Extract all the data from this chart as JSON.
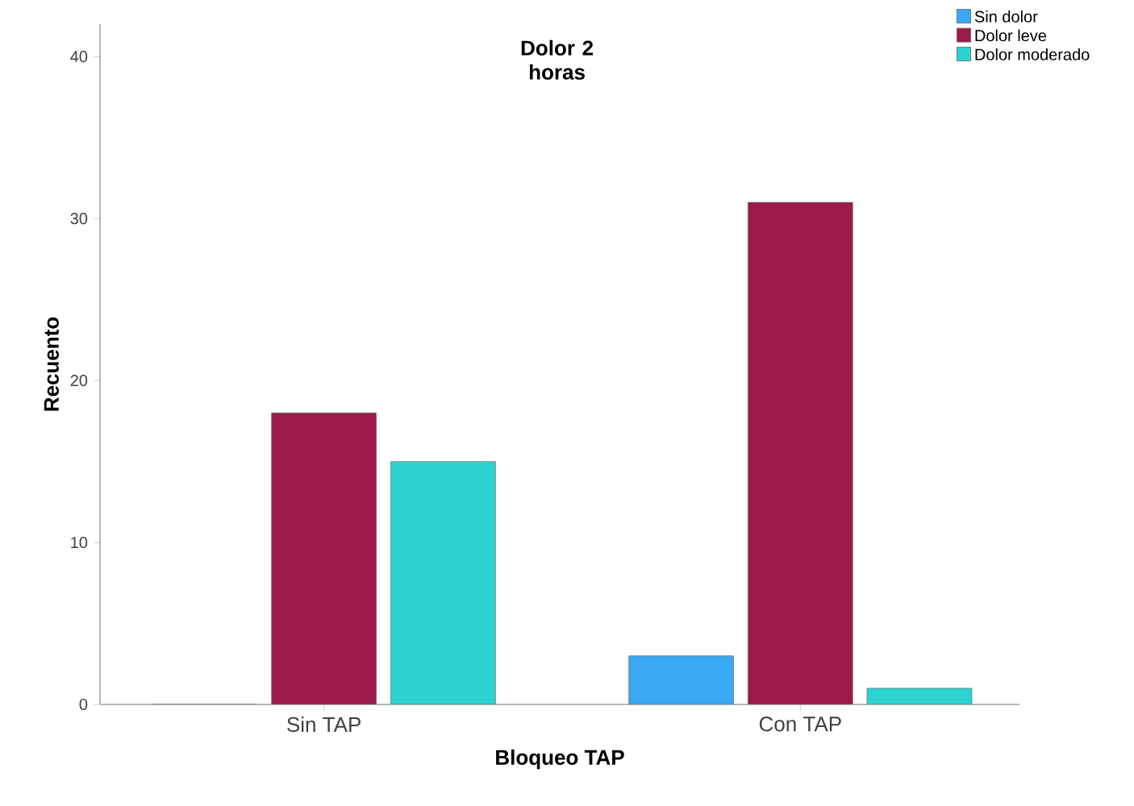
{
  "chart_data": {
    "type": "bar",
    "title": "Dolor 2 horas",
    "xlabel": "Bloqueo TAP",
    "ylabel": "Recuento",
    "categories": [
      "Sin TAP",
      "Con TAP"
    ],
    "series": [
      {
        "name": "Sin dolor",
        "color": "#3aa8f4",
        "values": [
          0,
          3
        ]
      },
      {
        "name": "Dolor leve",
        "color": "#9c1a4b",
        "values": [
          18,
          31
        ]
      },
      {
        "name": "Dolor moderado",
        "color": "#2ad3cf",
        "values": [
          15,
          1
        ]
      }
    ],
    "ylim": [
      0,
      42
    ],
    "yticks": [
      0,
      10,
      20,
      30,
      40
    ],
    "legend": "top right"
  }
}
